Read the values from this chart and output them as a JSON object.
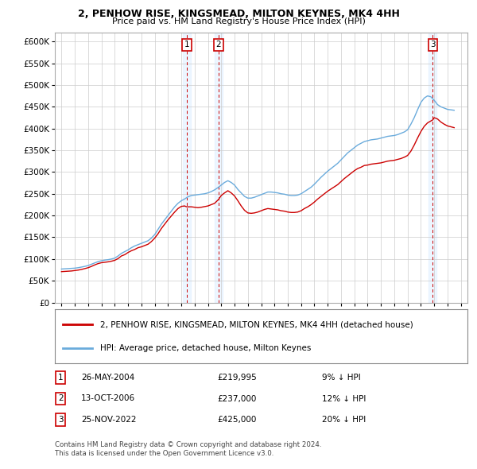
{
  "title": "2, PENHOW RISE, KINGSMEAD, MILTON KEYNES, MK4 4HH",
  "subtitle": "Price paid vs. HM Land Registry's House Price Index (HPI)",
  "legend_line1": "2, PENHOW RISE, KINGSMEAD, MILTON KEYNES, MK4 4HH (detached house)",
  "legend_line2": "HPI: Average price, detached house, Milton Keynes",
  "transactions": [
    {
      "num": 1,
      "date": "26-MAY-2004",
      "price": "£219,995",
      "pct": "9% ↓ HPI",
      "x_year": 2004.4
    },
    {
      "num": 2,
      "date": "13-OCT-2006",
      "price": "£237,000",
      "pct": "12% ↓ HPI",
      "x_year": 2006.8
    },
    {
      "num": 3,
      "date": "25-NOV-2022",
      "price": "£425,000",
      "pct": "20% ↓ HPI",
      "x_year": 2022.9
    }
  ],
  "footnote1": "Contains HM Land Registry data © Crown copyright and database right 2024.",
  "footnote2": "This data is licensed under the Open Government Licence v3.0.",
  "hpi_color": "#6aabdc",
  "price_color": "#cc0000",
  "vline_color": "#cc0000",
  "box_color": "#cc0000",
  "shade_color": "#ddeeff",
  "ylim": [
    0,
    620000
  ],
  "yticks": [
    0,
    50000,
    100000,
    150000,
    200000,
    250000,
    300000,
    350000,
    400000,
    450000,
    500000,
    550000,
    600000
  ],
  "xlim_start": 1994.5,
  "xlim_end": 2025.5,
  "background_color": "#ffffff",
  "grid_color": "#cccccc"
}
